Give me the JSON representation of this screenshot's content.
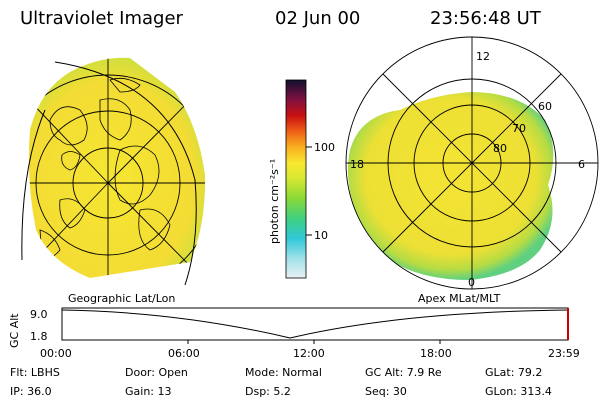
{
  "header": {
    "instrument": "Ultraviolet Imager",
    "date": "02 Jun 00",
    "time": "23:56:48 UT"
  },
  "colorbar": {
    "unit_label": "photon cm⁻²s⁻¹",
    "ticks": [
      "100",
      "10"
    ]
  },
  "left_panel": {
    "caption": "Geographic Lat/Lon"
  },
  "right_panel": {
    "caption": "Apex MLat/MLT",
    "lat_labels": [
      "60",
      "70",
      "80"
    ],
    "mlt_labels": [
      "12",
      "18",
      "6",
      "0"
    ]
  },
  "altitude_plot": {
    "ylabel": "GC Alt",
    "yticks": [
      "9.0",
      "1.8"
    ],
    "xticks": [
      "00:00",
      "06:00",
      "12:00",
      "18:00",
      "23:59"
    ]
  },
  "status": {
    "rows": [
      [
        {
          "text": "Flt: LBHS"
        },
        {
          "text": "Door: Open"
        },
        {
          "text": "Mode: Normal"
        },
        {
          "text": "GC Alt: 7.9 Re"
        },
        {
          "text": "GLat:  79.2"
        }
      ],
      [
        {
          "text": "IP: 36.0"
        },
        {
          "text": "Gain: 13"
        },
        {
          "text": "Dsp:    5.2"
        },
        {
          "text": "Seq: 30"
        },
        {
          "text": "GLon: 313.4"
        }
      ]
    ]
  },
  "colors": {
    "auroral_yellow": "#f6e630",
    "auroral_orange": "#f2c22a",
    "auroral_green": "#8fd43c",
    "auroral_cyan": "#40d0d8"
  }
}
